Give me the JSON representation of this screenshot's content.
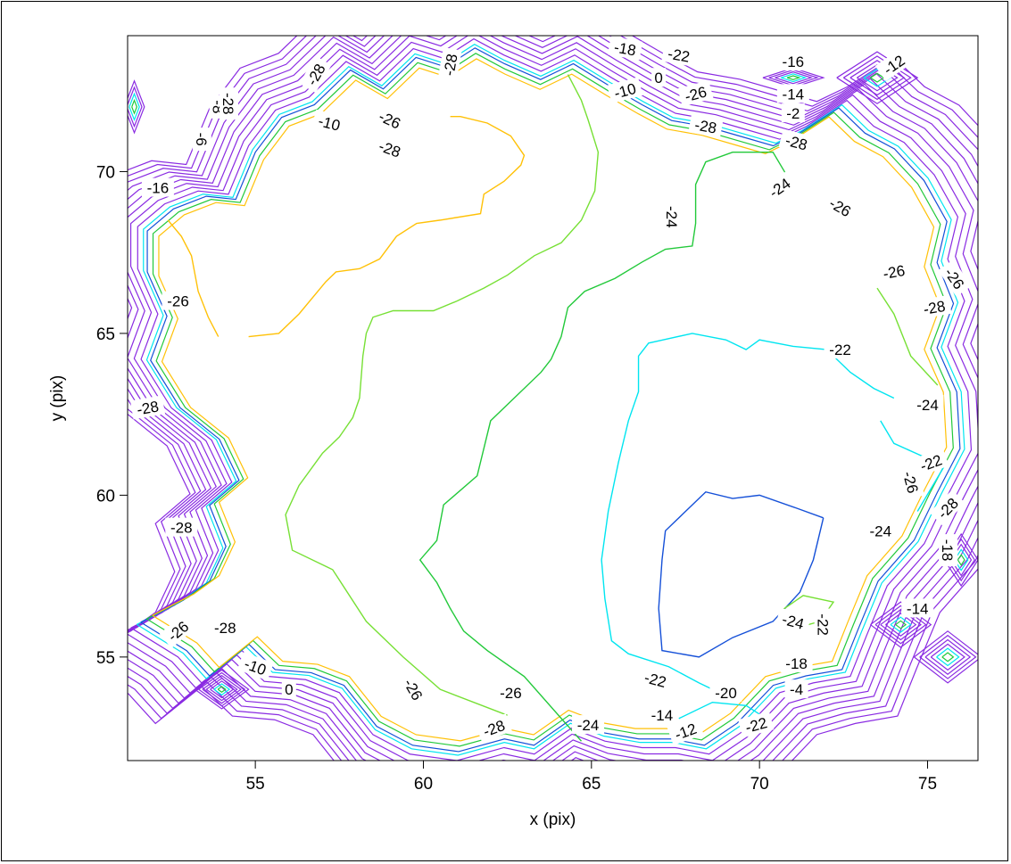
{
  "chart_data": {
    "type": "contour",
    "title": "",
    "xlabel": "x (pix)",
    "ylabel": "y (pix)",
    "xlim": [
      51.2,
      76.5
    ],
    "ylim": [
      51.8,
      74.2
    ],
    "x_ticks": [
      55,
      60,
      65,
      70,
      75
    ],
    "y_ticks": [
      55,
      60,
      65,
      70
    ],
    "grid": false,
    "legend": "none",
    "level_colors": {
      "-28": "#ffc107",
      "-26": "#77e035",
      "-24": "#22c93a",
      "-22": "#00e5f0",
      "-20": "#1550d8",
      "-18_and_above": "#8a2be2"
    },
    "contours": [
      {
        "level": -20,
        "color": "#1550d8",
        "points": [
          [
            71.9,
            59.3
          ],
          [
            71.6,
            58.0
          ],
          [
            71.2,
            57.0
          ],
          [
            70.4,
            56.1
          ],
          [
            69.2,
            55.6
          ],
          [
            68.2,
            55.0
          ],
          [
            67.1,
            55.2
          ],
          [
            67.0,
            56.5
          ],
          [
            67.1,
            58.0
          ],
          [
            67.2,
            58.9
          ],
          [
            67.7,
            59.4
          ],
          [
            68.4,
            60.1
          ],
          [
            69.2,
            59.9
          ],
          [
            70.0,
            60.0
          ],
          [
            71.1,
            59.6
          ],
          [
            71.9,
            59.3
          ]
        ]
      },
      {
        "level": -22,
        "color": "#00e5f0",
        "points": [
          [
            68.6,
            54.0
          ],
          [
            68.2,
            54.2
          ],
          [
            67.3,
            54.7
          ],
          [
            66.1,
            55.1
          ],
          [
            65.6,
            55.5
          ],
          [
            65.4,
            56.8
          ],
          [
            65.3,
            58.0
          ],
          [
            65.5,
            59.5
          ],
          [
            65.8,
            61.0
          ],
          [
            66.1,
            62.3
          ],
          [
            66.4,
            63.2
          ],
          [
            66.4,
            64.3
          ],
          [
            66.7,
            64.7
          ],
          [
            68.0,
            65.0
          ],
          [
            69.0,
            64.8
          ],
          [
            69.6,
            64.5
          ],
          [
            70.0,
            64.8
          ],
          [
            71.0,
            64.6
          ],
          [
            72.0,
            64.5
          ],
          [
            72.7,
            63.8
          ],
          [
            73.4,
            63.3
          ],
          [
            74.0,
            63.0
          ]
        ]
      },
      {
        "level": -24,
        "color": "#22c93a",
        "points": [
          [
            64.7,
            52.4
          ],
          [
            63.0,
            54.4
          ],
          [
            61.9,
            55.2
          ],
          [
            61.2,
            55.8
          ],
          [
            60.8,
            56.5
          ],
          [
            60.4,
            57.3
          ],
          [
            59.9,
            58.0
          ],
          [
            60.4,
            58.6
          ],
          [
            60.6,
            59.7
          ],
          [
            61.6,
            60.6
          ],
          [
            62.0,
            62.3
          ],
          [
            63.5,
            63.8
          ],
          [
            63.8,
            64.2
          ],
          [
            64.1,
            64.9
          ],
          [
            64.3,
            65.8
          ],
          [
            64.8,
            66.3
          ],
          [
            65.7,
            66.7
          ],
          [
            66.5,
            67.2
          ],
          [
            67.2,
            67.6
          ],
          [
            68.0,
            67.7
          ],
          [
            68.1,
            68.4
          ],
          [
            68.1,
            69.6
          ],
          [
            68.4,
            70.3
          ],
          [
            69.2,
            70.6
          ],
          [
            70.4,
            70.6
          ],
          [
            70.8,
            69.9
          ]
        ]
      },
      {
        "level": -26,
        "color": "#77e035",
        "points": [
          [
            62.5,
            53.2
          ],
          [
            60.5,
            54.0
          ],
          [
            59.4,
            55.0
          ],
          [
            58.3,
            56.1
          ],
          [
            57.3,
            57.7
          ],
          [
            56.1,
            58.3
          ],
          [
            55.9,
            59.4
          ],
          [
            56.3,
            60.3
          ],
          [
            57.0,
            61.3
          ],
          [
            57.5,
            61.8
          ],
          [
            57.9,
            62.4
          ],
          [
            58.1,
            63.0
          ],
          [
            58.2,
            64.3
          ],
          [
            58.3,
            65.0
          ],
          [
            58.5,
            65.5
          ],
          [
            59.1,
            65.7
          ],
          [
            60.3,
            65.7
          ],
          [
            61.0,
            66.0
          ],
          [
            61.8,
            66.4
          ],
          [
            62.5,
            66.8
          ],
          [
            63.3,
            67.4
          ],
          [
            64.1,
            67.8
          ],
          [
            64.7,
            68.5
          ],
          [
            65.1,
            69.4
          ],
          [
            65.2,
            70.6
          ],
          [
            64.9,
            71.6
          ],
          [
            64.7,
            72.2
          ],
          [
            64.3,
            73.0
          ]
        ]
      },
      {
        "level": -28,
        "color": "#ffc107",
        "points": [
          [
            54.8,
            64.9
          ],
          [
            55.7,
            65.0
          ],
          [
            56.3,
            65.6
          ],
          [
            57.1,
            66.6
          ],
          [
            57.4,
            66.9
          ],
          [
            58.1,
            67.0
          ],
          [
            58.7,
            67.3
          ],
          [
            59.2,
            68.0
          ],
          [
            59.8,
            68.4
          ],
          [
            60.5,
            68.5
          ],
          [
            61.7,
            68.7
          ],
          [
            61.8,
            69.3
          ],
          [
            62.4,
            69.7
          ],
          [
            62.9,
            70.2
          ],
          [
            63.0,
            70.5
          ],
          [
            62.6,
            71.1
          ],
          [
            61.9,
            71.5
          ],
          [
            61.1,
            71.7
          ],
          [
            60.8,
            71.7
          ]
        ]
      },
      {
        "level": -28,
        "color": "#ffc107",
        "points": [
          [
            53.9,
            64.9
          ],
          [
            53.6,
            65.5
          ],
          [
            53.3,
            66.3
          ],
          [
            53.1,
            67.4
          ],
          [
            52.8,
            68.0
          ],
          [
            52.4,
            68.5
          ]
        ]
      },
      {
        "level": -26,
        "color": "#77e035",
        "points": [
          [
            70.6,
            56.4
          ],
          [
            71.3,
            56.9
          ],
          [
            72.2,
            56.7
          ],
          [
            71.8,
            56.1
          ],
          [
            71.1,
            55.9
          ]
        ]
      },
      {
        "level": -22,
        "color": "#00e5f0",
        "points": [
          [
            67.6,
            53.1
          ],
          [
            68.6,
            53.6
          ],
          [
            69.6,
            53.5
          ],
          [
            70.2,
            53.1
          ]
        ]
      },
      {
        "level": -22,
        "color": "#00e5f0",
        "points": [
          [
            74.7,
            59.5
          ],
          [
            75.1,
            60.2
          ],
          [
            75.5,
            60.9
          ],
          [
            74.0,
            61.6
          ],
          [
            73.6,
            62.3
          ]
        ]
      },
      {
        "level": -26,
        "color": "#77e035",
        "points": [
          [
            73.5,
            66.4
          ],
          [
            74.0,
            65.6
          ],
          [
            74.5,
            64.3
          ],
          [
            75.3,
            63.4
          ]
        ]
      }
    ],
    "boundary_bands": {
      "color": "#8a2be2",
      "count": 9,
      "ring": [
        [
          51.3,
          55.9
        ],
        [
          52.7,
          55.0
        ],
        [
          53.4,
          54.2
        ],
        [
          54.6,
          55.2
        ],
        [
          55.4,
          54.4
        ],
        [
          56.5,
          54.3
        ],
        [
          57.5,
          53.9
        ],
        [
          58.5,
          52.6
        ],
        [
          59.6,
          52.0
        ],
        [
          61.0,
          51.8
        ],
        [
          62.4,
          52.2
        ],
        [
          63.3,
          52.0
        ],
        [
          64.4,
          52.8
        ],
        [
          65.4,
          52.4
        ],
        [
          66.5,
          52.2
        ],
        [
          67.5,
          52.2
        ],
        [
          68.5,
          52.0
        ],
        [
          69.5,
          52.7
        ],
        [
          70.6,
          53.9
        ],
        [
          71.6,
          54.2
        ],
        [
          72.7,
          54.4
        ],
        [
          73.2,
          55.7
        ],
        [
          73.8,
          57.2
        ],
        [
          74.9,
          58.5
        ],
        [
          75.6,
          60.0
        ],
        [
          76.3,
          61.4
        ],
        [
          76.2,
          63.2
        ],
        [
          75.6,
          64.6
        ],
        [
          76.1,
          66.0
        ],
        [
          75.6,
          67.3
        ],
        [
          75.9,
          68.6
        ],
        [
          75.2,
          69.9
        ],
        [
          74.3,
          70.9
        ],
        [
          73.4,
          71.4
        ],
        [
          72.6,
          72.2
        ],
        [
          71.4,
          71.4
        ],
        [
          70.6,
          71.0
        ],
        [
          69.6,
          71.3
        ],
        [
          68.6,
          71.6
        ],
        [
          67.5,
          71.8
        ],
        [
          66.6,
          72.3
        ],
        [
          65.6,
          72.9
        ],
        [
          64.5,
          73.6
        ],
        [
          63.5,
          73.1
        ],
        [
          62.4,
          73.6
        ],
        [
          61.5,
          74.1
        ],
        [
          60.6,
          73.5
        ],
        [
          59.7,
          73.8
        ],
        [
          58.7,
          72.8
        ],
        [
          57.7,
          73.4
        ],
        [
          56.6,
          72.3
        ],
        [
          55.6,
          71.9
        ],
        [
          54.8,
          70.8
        ],
        [
          54.2,
          69.3
        ],
        [
          53.3,
          69.4
        ],
        [
          52.3,
          69.0
        ],
        [
          51.5,
          68.3
        ],
        [
          51.5,
          67.0
        ],
        [
          52.1,
          65.6
        ],
        [
          51.6,
          64.2
        ],
        [
          52.5,
          62.7
        ],
        [
          53.7,
          61.7
        ],
        [
          54.3,
          60.4
        ],
        [
          53.4,
          59.6
        ],
        [
          53.9,
          58.3
        ],
        [
          53.4,
          57.2
        ],
        [
          52.6,
          56.6
        ],
        [
          51.3,
          55.9
        ]
      ]
    },
    "boundary_blobs": [
      {
        "color": "#8a2be2",
        "rings": 7,
        "center": [
          54.0,
          54.0
        ],
        "radius": [
          0.8,
          0.6
        ]
      },
      {
        "color": "#8a2be2",
        "rings": 5,
        "center": [
          71.0,
          72.9
        ],
        "radius": [
          0.9,
          0.3
        ]
      },
      {
        "color": "#8a2be2",
        "rings": 6,
        "center": [
          73.5,
          72.9
        ],
        "radius": [
          1.2,
          0.8
        ]
      },
      {
        "color": "#8a2be2",
        "rings": 6,
        "center": [
          74.2,
          56.0
        ],
        "radius": [
          0.9,
          0.7
        ]
      },
      {
        "color": "#8a2be2",
        "rings": 5,
        "center": [
          76.0,
          58.0
        ],
        "radius": [
          0.5,
          0.8
        ]
      },
      {
        "color": "#8a2be2",
        "rings": 4,
        "center": [
          51.4,
          72.0
        ],
        "radius": [
          0.3,
          0.8
        ]
      },
      {
        "color": "#8a2be2",
        "rings": 6,
        "center": [
          75.6,
          55.0
        ],
        "radius": [
          1.0,
          0.8
        ]
      }
    ],
    "labels": [
      {
        "text": "-6",
        "x": 53.4,
        "y": 71.0,
        "angle": -90
      },
      {
        "text": "-8",
        "x": 53.9,
        "y": 72.0,
        "angle": -90
      },
      {
        "text": "-28",
        "x": 54.2,
        "y": 72.1,
        "angle": -90
      },
      {
        "text": "-28",
        "x": 56.8,
        "y": 73.0,
        "angle": 60
      },
      {
        "text": "-28",
        "x": 60.8,
        "y": 73.3,
        "angle": 80
      },
      {
        "text": "-10",
        "x": 57.2,
        "y": 71.5,
        "angle": -15
      },
      {
        "text": "-26",
        "x": 59.0,
        "y": 71.6,
        "angle": -25
      },
      {
        "text": "-28",
        "x": 59.0,
        "y": 70.7,
        "angle": -20
      },
      {
        "text": "-16",
        "x": 52.1,
        "y": 69.5,
        "angle": 0
      },
      {
        "text": "-26",
        "x": 52.7,
        "y": 66.0,
        "angle": 0
      },
      {
        "text": "-28",
        "x": 51.8,
        "y": 62.7,
        "angle": 10
      },
      {
        "text": "-28",
        "x": 52.8,
        "y": 59.0,
        "angle": 0
      },
      {
        "text": "-26",
        "x": 52.7,
        "y": 55.8,
        "angle": 40
      },
      {
        "text": "-28",
        "x": 54.1,
        "y": 55.9,
        "angle": 0
      },
      {
        "text": "-10",
        "x": 55.0,
        "y": 54.7,
        "angle": -20
      },
      {
        "text": "0",
        "x": 56.0,
        "y": 54.0,
        "angle": 0
      },
      {
        "text": "-26",
        "x": 59.7,
        "y": 54.0,
        "angle": -60
      },
      {
        "text": "-26",
        "x": 62.6,
        "y": 53.9,
        "angle": 0
      },
      {
        "text": "-28",
        "x": 62.1,
        "y": 52.8,
        "angle": 20
      },
      {
        "text": "-24",
        "x": 64.9,
        "y": 52.9,
        "angle": 0
      },
      {
        "text": "-14",
        "x": 67.1,
        "y": 53.2,
        "angle": 0
      },
      {
        "text": "-12",
        "x": 67.8,
        "y": 52.7,
        "angle": 20
      },
      {
        "text": "-22",
        "x": 66.9,
        "y": 54.3,
        "angle": -15
      },
      {
        "text": "-20",
        "x": 69.0,
        "y": 53.9,
        "angle": 0
      },
      {
        "text": "-22",
        "x": 69.9,
        "y": 52.9,
        "angle": 15
      },
      {
        "text": "-18",
        "x": 71.1,
        "y": 54.8,
        "angle": 0
      },
      {
        "text": "-4",
        "x": 71.1,
        "y": 54.0,
        "angle": 0
      },
      {
        "text": "-24",
        "x": 71.0,
        "y": 56.1,
        "angle": -15
      },
      {
        "text": "-22",
        "x": 71.9,
        "y": 56.0,
        "angle": -90
      },
      {
        "text": "-14",
        "x": 74.7,
        "y": 56.5,
        "angle": 0
      },
      {
        "text": "-18",
        "x": 75.6,
        "y": 58.3,
        "angle": -90
      },
      {
        "text": "-24",
        "x": 73.6,
        "y": 58.9,
        "angle": 0
      },
      {
        "text": "-26",
        "x": 74.5,
        "y": 60.4,
        "angle": -75
      },
      {
        "text": "-28",
        "x": 75.6,
        "y": 59.6,
        "angle": 45
      },
      {
        "text": "-22",
        "x": 75.1,
        "y": 61.0,
        "angle": 20
      },
      {
        "text": "-24",
        "x": 75.0,
        "y": 62.8,
        "angle": 0
      },
      {
        "text": "-22",
        "x": 72.4,
        "y": 64.5,
        "angle": 0
      },
      {
        "text": "-28",
        "x": 75.2,
        "y": 65.8,
        "angle": 10
      },
      {
        "text": "-26",
        "x": 74.0,
        "y": 66.9,
        "angle": 10
      },
      {
        "text": "-26",
        "x": 75.8,
        "y": 66.7,
        "angle": -55
      },
      {
        "text": "-26",
        "x": 72.4,
        "y": 68.9,
        "angle": -30
      },
      {
        "text": "-24",
        "x": 70.6,
        "y": 69.5,
        "angle": 35
      },
      {
        "text": "-28",
        "x": 71.1,
        "y": 70.9,
        "angle": -15
      },
      {
        "text": "-2",
        "x": 71.0,
        "y": 71.8,
        "angle": 0
      },
      {
        "text": "-14",
        "x": 71.0,
        "y": 72.4,
        "angle": 0
      },
      {
        "text": "-16",
        "x": 71.0,
        "y": 73.4,
        "angle": 0
      },
      {
        "text": "-12",
        "x": 74.0,
        "y": 73.3,
        "angle": 35
      },
      {
        "text": "-22",
        "x": 67.6,
        "y": 73.6,
        "angle": -10
      },
      {
        "text": "-18",
        "x": 66.0,
        "y": 73.8,
        "angle": -10
      },
      {
        "text": "0",
        "x": 67.0,
        "y": 72.9,
        "angle": 0
      },
      {
        "text": "-26",
        "x": 68.1,
        "y": 72.4,
        "angle": 15
      },
      {
        "text": "-10",
        "x": 66.0,
        "y": 72.5,
        "angle": 15
      },
      {
        "text": "-28",
        "x": 68.4,
        "y": 71.4,
        "angle": -10
      },
      {
        "text": "-24",
        "x": 67.4,
        "y": 68.6,
        "angle": -90
      }
    ]
  }
}
